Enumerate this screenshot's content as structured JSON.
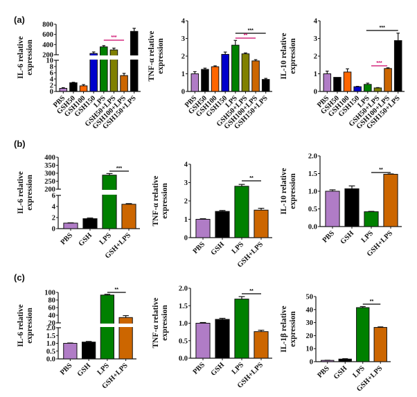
{
  "figure": {
    "panels": [
      {
        "label": "(a)"
      },
      {
        "label": "(b)"
      },
      {
        "label": "(c)"
      }
    ]
  },
  "colors": {
    "PBS": "#b07cc6",
    "GSH": "#000000",
    "GSH50": "#000000",
    "GSH100": "#ff6600",
    "GSH150": "#0000cc",
    "LPS": "#008000",
    "GSH50+LPS": "#808000",
    "GSH100+LPS": "#cc6600",
    "GSH150+LPS": "#000000",
    "GSH+LPS": "#cc6600",
    "sig_black": "#000000",
    "sig_magenta": "#cc0066"
  },
  "chart_data": [
    {
      "id": "a-il6",
      "panel": "(a)",
      "type": "bar",
      "ylabel": [
        "IL-6 relative",
        "expression"
      ],
      "broken_axis": true,
      "lower": {
        "ylim": [
          0,
          10
        ],
        "ticks": [
          "0",
          "2",
          "4",
          "6",
          "8",
          "10"
        ]
      },
      "upper": {
        "ylim": [
          200,
          800
        ],
        "ticks": [
          "200",
          "400",
          "600",
          "800"
        ]
      },
      "categories": [
        "PBS",
        "GSH50",
        "GSH100",
        "GSH150",
        "LPS",
        "GSH50+LPS",
        "GSH100+LPS",
        "GSH150+LPS"
      ],
      "values": [
        1.0,
        2.8,
        1.8,
        225,
        355,
        295,
        5.1,
        660
      ],
      "errors": [
        0.2,
        0.15,
        0.4,
        30,
        25,
        35,
        0.7,
        60
      ],
      "significance": [
        {
          "from": "LPS",
          "to": "GSH100+LPS",
          "label": "***",
          "color": "magenta"
        }
      ]
    },
    {
      "id": "a-tnf",
      "panel": "(a)",
      "type": "bar",
      "ylabel": [
        "TNF-α relative",
        "expression"
      ],
      "ylim": [
        0,
        4
      ],
      "ticks": [
        "0",
        "1",
        "2",
        "3",
        "4"
      ],
      "categories": [
        "PBS",
        "GSH50",
        "GSH100",
        "GSH150",
        "LPS",
        "GSH50+LPS",
        "GSH100+LPS",
        "GSH150+LPS"
      ],
      "values": [
        1.0,
        1.25,
        1.4,
        2.1,
        2.62,
        2.13,
        1.73,
        0.68
      ],
      "errors": [
        0.12,
        0.07,
        0.05,
        0.13,
        0.27,
        0.05,
        0.07,
        0.06
      ],
      "significance": [
        {
          "from": "LPS",
          "to": "GSH150+LPS",
          "label": "***",
          "color": "black"
        },
        {
          "from": "LPS",
          "to": "GSH100+LPS",
          "label": "**",
          "color": "magenta"
        }
      ]
    },
    {
      "id": "a-il10",
      "panel": "(a)",
      "type": "bar",
      "ylabel": [
        "IL-10 relative",
        "expression"
      ],
      "ylim": [
        0,
        4
      ],
      "ticks": [
        "0",
        "1",
        "2",
        "3",
        "4"
      ],
      "categories": [
        "PBS",
        "GSH50",
        "GSH100",
        "GSH150",
        "LPS",
        "GSH50+LPS",
        "GSH100+LPS",
        "GSH150+LPS"
      ],
      "values": [
        1.0,
        0.8,
        1.1,
        0.27,
        0.4,
        0.2,
        1.3,
        2.88
      ],
      "errors": [
        0.15,
        0.0,
        0.18,
        0.02,
        0.07,
        0.02,
        0.04,
        0.42
      ],
      "significance": [
        {
          "from": "LPS",
          "to": "GSH150+LPS",
          "label": "***",
          "color": "black"
        },
        {
          "from": "GSH50",
          "to": "GSH100+LPS",
          "label": "***",
          "color": "magenta",
          "x_start_frac": 0.48
        }
      ]
    },
    {
      "id": "b-il6",
      "panel": "(b)",
      "type": "bar",
      "ylabel": [
        "IL-6 relative",
        "expression"
      ],
      "broken_axis": true,
      "lower": {
        "ylim": [
          0,
          6
        ],
        "ticks": [
          "0",
          "2",
          "4",
          "6"
        ]
      },
      "upper": {
        "ylim": [
          200,
          400
        ],
        "ticks": [
          "200",
          "250",
          "300",
          "350",
          "400"
        ]
      },
      "categories": [
        "PBS",
        "GSH",
        "LPS",
        "GSH+LPS"
      ],
      "values": [
        1.0,
        1.8,
        288,
        4.4
      ],
      "errors": [
        0.05,
        0.12,
        10,
        0.12
      ],
      "significance": [
        {
          "from": "LPS",
          "to": "GSH+LPS",
          "label": "***",
          "color": "black"
        }
      ]
    },
    {
      "id": "b-tnf",
      "panel": "(b)",
      "type": "bar",
      "ylabel": [
        "TNF-α relative",
        "expression"
      ],
      "ylim": [
        0,
        4
      ],
      "ticks": [
        "0",
        "1",
        "2",
        "3",
        "4"
      ],
      "categories": [
        "PBS",
        "GSH",
        "LPS",
        "GSH+LPS"
      ],
      "values": [
        1.0,
        1.43,
        2.8,
        1.5
      ],
      "errors": [
        0.03,
        0.05,
        0.1,
        0.1
      ],
      "significance": [
        {
          "from": "LPS",
          "to": "GSH+LPS",
          "label": "**",
          "color": "black"
        }
      ]
    },
    {
      "id": "b-il10",
      "panel": "(b)",
      "type": "bar",
      "ylabel": [
        "IL-10 relative",
        "expression"
      ],
      "ylim": [
        0,
        2.0
      ],
      "ticks": [
        "0.0",
        "0.5",
        "1.0",
        "1.5",
        "2.0"
      ],
      "categories": [
        "PBS",
        "GSH",
        "LPS",
        "GSH+LPS"
      ],
      "values": [
        1.0,
        1.07,
        0.42,
        1.48
      ],
      "errors": [
        0.04,
        0.08,
        0.01,
        0.01
      ],
      "significance": [
        {
          "from": "LPS",
          "to": "GSH+LPS",
          "label": "**",
          "color": "black"
        }
      ]
    },
    {
      "id": "c-il6",
      "panel": "(c)",
      "type": "bar",
      "ylabel": [
        "IL-6 relative",
        "expression"
      ],
      "broken_axis": true,
      "lower": {
        "ylim": [
          0,
          2.0
        ],
        "ticks": [
          "0.0",
          "0.5",
          "1.0",
          "1.5",
          "2.0"
        ]
      },
      "upper": {
        "ylim": [
          20,
          100
        ],
        "ticks": [
          "20",
          "40",
          "60",
          "80",
          "100"
        ]
      },
      "categories": [
        "PBS",
        "GSH",
        "LPS",
        "GSH+LPS"
      ],
      "values": [
        1.0,
        1.08,
        93,
        34
      ],
      "errors": [
        0.02,
        0.04,
        2,
        5
      ],
      "significance": [
        {
          "from": "LPS",
          "to": "GSH+LPS",
          "label": "**",
          "color": "black"
        }
      ]
    },
    {
      "id": "c-tnf",
      "panel": "(c)",
      "type": "bar",
      "ylabel": [
        "TNF-α relative",
        "expression"
      ],
      "ylim": [
        0,
        2.0
      ],
      "ticks": [
        "0.0",
        "0.5",
        "1.0",
        "1.5",
        "2.0"
      ],
      "categories": [
        "PBS",
        "GSH",
        "LPS",
        "GSH+LPS"
      ],
      "values": [
        1.0,
        1.11,
        1.69,
        0.76
      ],
      "errors": [
        0.02,
        0.03,
        0.07,
        0.04
      ],
      "significance": [
        {
          "from": "LPS",
          "to": "GSH+LPS",
          "label": "**",
          "color": "black"
        }
      ]
    },
    {
      "id": "c-il1b",
      "panel": "(c)",
      "type": "bar",
      "ylabel": [
        "IL-1β relative",
        "expression"
      ],
      "ylim": [
        0,
        50
      ],
      "ticks": [
        "0",
        "10",
        "20",
        "30",
        "40",
        "50"
      ],
      "categories": [
        "PBS",
        "GSH",
        "LPS",
        "GSH+LPS"
      ],
      "values": [
        1.0,
        2.0,
        41.5,
        26.3
      ],
      "errors": [
        0.1,
        0.3,
        0.8,
        0.4
      ],
      "significance": [
        {
          "from": "LPS",
          "to": "GSH+LPS",
          "label": "**",
          "color": "black"
        }
      ]
    }
  ]
}
